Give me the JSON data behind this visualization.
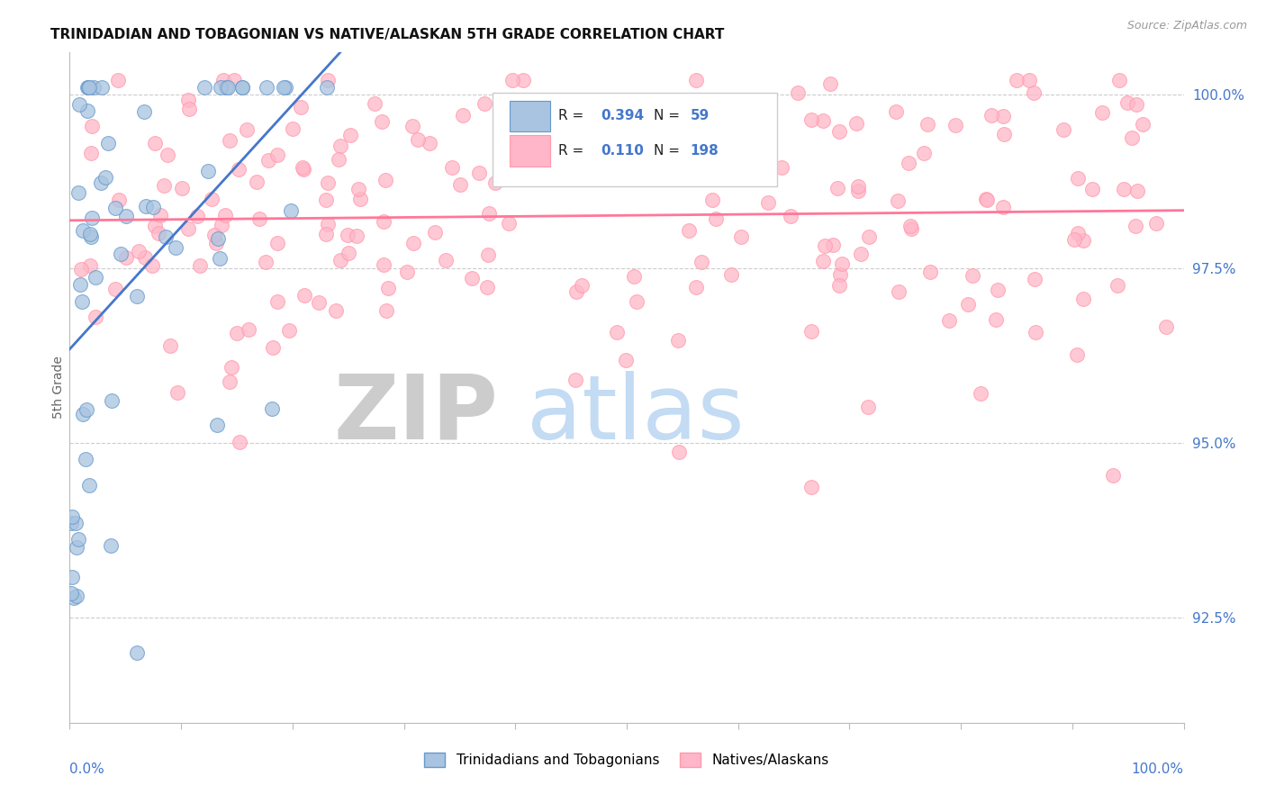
{
  "title": "TRINIDADIAN AND TOBAGONIAN VS NATIVE/ALASKAN 5TH GRADE CORRELATION CHART",
  "source_text": "Source: ZipAtlas.com",
  "ylabel": "5th Grade",
  "legend_blue_label": "Trinidadians and Tobagonians",
  "legend_pink_label": "Natives/Alaskans",
  "blue_R": "0.394",
  "blue_N": "59",
  "pink_R": "0.110",
  "pink_N": "198",
  "blue_color": "#A8C4E0",
  "pink_color": "#FFB6C8",
  "blue_edge_color": "#6699CC",
  "pink_edge_color": "#FF99AA",
  "blue_line_color": "#4477CC",
  "pink_line_color": "#FF7799",
  "background_color": "#FFFFFF",
  "title_color": "#111111",
  "source_color": "#999999",
  "axis_label_color": "#4477CC",
  "grid_color": "#CCCCCC",
  "xlim": [
    0.0,
    1.0
  ],
  "ylim": [
    0.91,
    1.006
  ],
  "y_tick_values": [
    0.925,
    0.95,
    0.975,
    1.0
  ],
  "y_tick_labels": [
    "92.5%",
    "95.0%",
    "97.5%",
    "100.0%"
  ]
}
